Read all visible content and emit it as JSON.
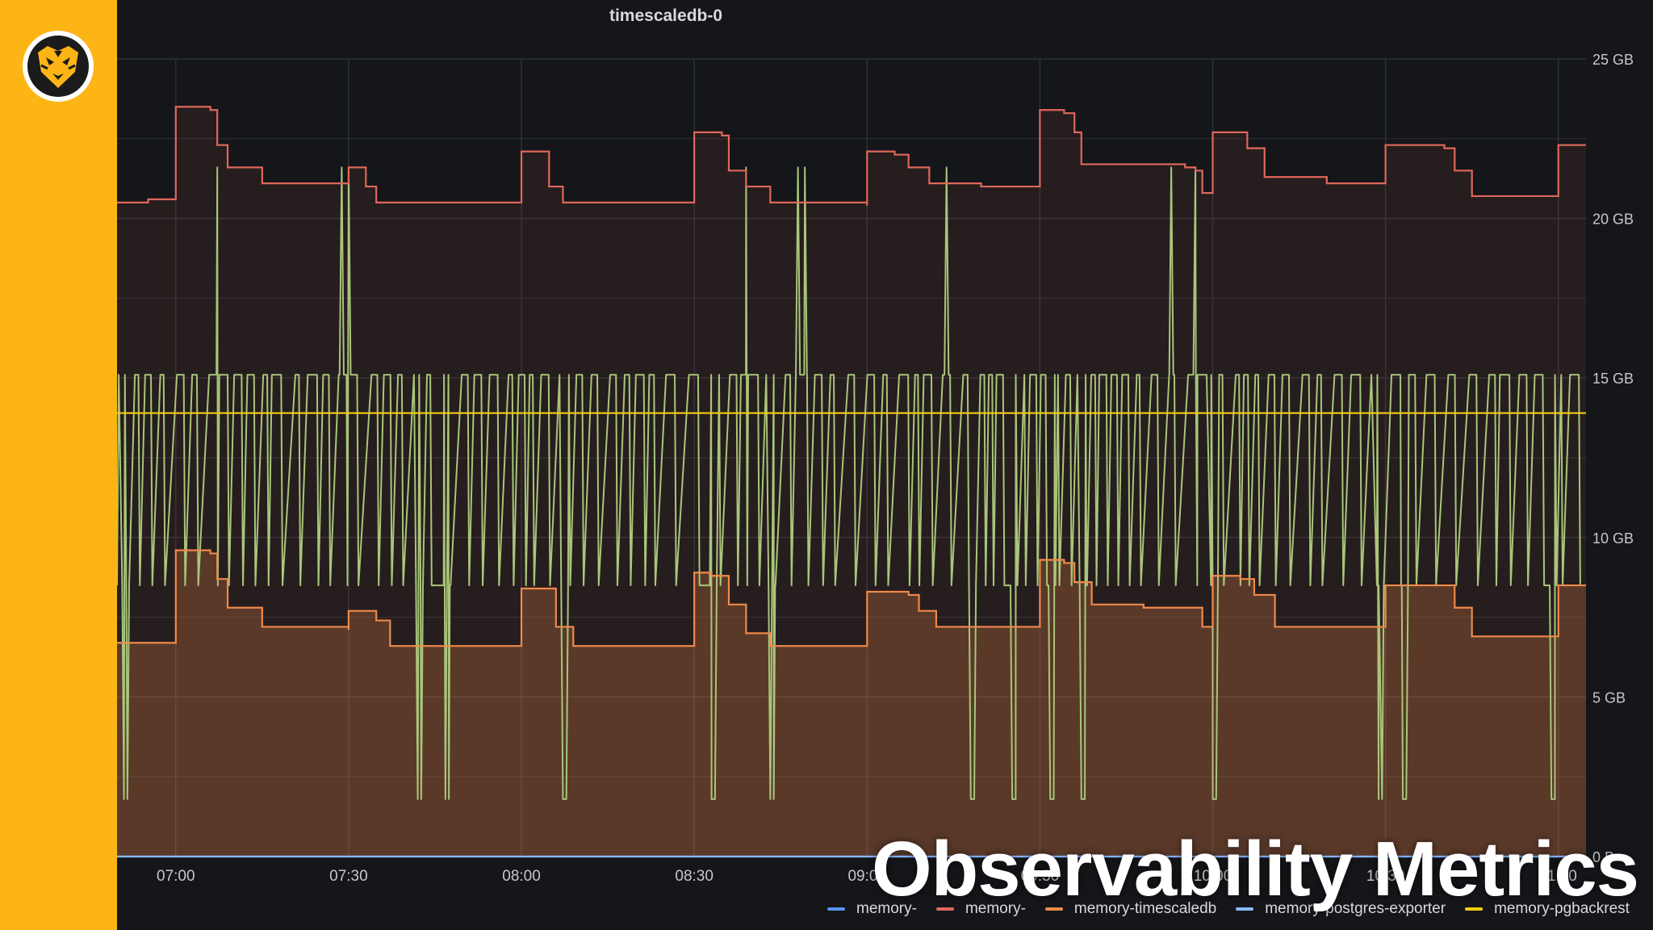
{
  "panel": {
    "title": "timescaledb-0"
  },
  "overlay": {
    "title": "Observability Metrics"
  },
  "logo": {
    "icon": "tiger-logo-icon"
  },
  "colors": {
    "sidebar": "#fdb515",
    "background": "#141619",
    "grid": "#2d3037",
    "axis_text": "#c7c8ca"
  },
  "chart_data": {
    "type": "area",
    "title": "timescaledb-0",
    "xlabel": "",
    "ylabel": "",
    "x_ticks": [
      "07:00",
      "07:30",
      "08:00",
      "08:30",
      "09:00",
      "09:30",
      "10:00",
      "10:30",
      "11:00"
    ],
    "y_ticks": [
      "25 GB",
      "20 GB",
      "15 GB",
      "10 GB",
      "5 GB",
      "0 B"
    ],
    "ylim_gb": [
      0,
      25
    ],
    "xlim_hours": [
      6.83,
      11.08
    ],
    "grid": true,
    "legend_position": "bottom-right",
    "series": [
      {
        "name": "memory-",
        "color": "#5794f2",
        "fill": false,
        "kind": "step",
        "points": [
          [
            6.83,
            0
          ],
          [
            11.08,
            0
          ]
        ]
      },
      {
        "name": "memory-",
        "color": "#e0675a",
        "fill": true,
        "kind": "step",
        "points": [
          [
            6.83,
            20.5
          ],
          [
            6.92,
            20.6
          ],
          [
            7.0,
            23.5
          ],
          [
            7.1,
            23.4
          ],
          [
            7.12,
            22.3
          ],
          [
            7.15,
            21.6
          ],
          [
            7.25,
            21.1
          ],
          [
            7.5,
            21.1
          ],
          [
            7.5,
            21.6
          ],
          [
            7.55,
            21.0
          ],
          [
            7.58,
            20.5
          ],
          [
            7.83,
            20.5
          ],
          [
            8.0,
            20.5
          ],
          [
            8.0,
            22.1
          ],
          [
            8.05,
            22.1
          ],
          [
            8.08,
            21.0
          ],
          [
            8.12,
            20.5
          ],
          [
            8.5,
            20.5
          ],
          [
            8.5,
            22.7
          ],
          [
            8.58,
            22.6
          ],
          [
            8.6,
            21.5
          ],
          [
            8.65,
            21.0
          ],
          [
            8.72,
            20.5
          ],
          [
            8.83,
            20.5
          ],
          [
            9.0,
            20.4
          ],
          [
            9.0,
            22.1
          ],
          [
            9.08,
            22.0
          ],
          [
            9.12,
            21.6
          ],
          [
            9.18,
            21.1
          ],
          [
            9.33,
            21.0
          ],
          [
            9.5,
            21.0
          ],
          [
            9.5,
            23.4
          ],
          [
            9.57,
            23.3
          ],
          [
            9.6,
            22.7
          ],
          [
            9.62,
            21.7
          ],
          [
            9.75,
            21.7
          ],
          [
            9.92,
            21.6
          ],
          [
            9.95,
            21.5
          ],
          [
            9.97,
            20.8
          ],
          [
            10.0,
            21.0
          ],
          [
            10.0,
            22.7
          ],
          [
            10.07,
            22.7
          ],
          [
            10.1,
            22.2
          ],
          [
            10.15,
            21.3
          ],
          [
            10.33,
            21.1
          ],
          [
            10.5,
            21.1
          ],
          [
            10.5,
            22.3
          ],
          [
            10.67,
            22.2
          ],
          [
            10.7,
            21.5
          ],
          [
            10.75,
            20.7
          ],
          [
            10.92,
            20.7
          ],
          [
            11.0,
            20.7
          ],
          [
            11.0,
            22.3
          ],
          [
            11.08,
            22.3
          ]
        ]
      },
      {
        "name": "memory-timescaledb",
        "color": "#ef8a4a",
        "fill": true,
        "kind": "step",
        "points": [
          [
            6.83,
            6.7
          ],
          [
            6.92,
            6.7
          ],
          [
            7.0,
            9.6
          ],
          [
            7.1,
            9.5
          ],
          [
            7.12,
            8.7
          ],
          [
            7.15,
            7.8
          ],
          [
            7.25,
            7.2
          ],
          [
            7.5,
            7.1
          ],
          [
            7.5,
            7.7
          ],
          [
            7.58,
            7.4
          ],
          [
            7.62,
            6.6
          ],
          [
            7.83,
            6.6
          ],
          [
            8.0,
            6.6
          ],
          [
            8.0,
            8.4
          ],
          [
            8.05,
            8.4
          ],
          [
            8.1,
            7.2
          ],
          [
            8.15,
            6.6
          ],
          [
            8.5,
            6.6
          ],
          [
            8.5,
            8.9
          ],
          [
            8.55,
            8.8
          ],
          [
            8.6,
            7.9
          ],
          [
            8.65,
            7.0
          ],
          [
            8.72,
            6.6
          ],
          [
            8.83,
            6.6
          ],
          [
            9.0,
            6.6
          ],
          [
            9.0,
            8.3
          ],
          [
            9.12,
            8.2
          ],
          [
            9.15,
            7.7
          ],
          [
            9.2,
            7.2
          ],
          [
            9.33,
            7.2
          ],
          [
            9.5,
            7.2
          ],
          [
            9.5,
            9.3
          ],
          [
            9.57,
            9.2
          ],
          [
            9.6,
            8.6
          ],
          [
            9.65,
            7.9
          ],
          [
            9.8,
            7.8
          ],
          [
            9.95,
            7.8
          ],
          [
            9.97,
            7.2
          ],
          [
            10.0,
            7.2
          ],
          [
            10.0,
            8.8
          ],
          [
            10.08,
            8.7
          ],
          [
            10.12,
            8.2
          ],
          [
            10.18,
            7.2
          ],
          [
            10.33,
            7.2
          ],
          [
            10.5,
            7.2
          ],
          [
            10.5,
            8.5
          ],
          [
            10.67,
            8.5
          ],
          [
            10.7,
            7.8
          ],
          [
            10.75,
            6.9
          ],
          [
            10.92,
            6.9
          ],
          [
            11.0,
            6.9
          ],
          [
            11.0,
            8.5
          ],
          [
            11.08,
            8.5
          ]
        ]
      },
      {
        "name": "memory-postgres-exporter",
        "color": "#8ab8ff",
        "fill": false,
        "kind": "step",
        "points": [
          [
            6.83,
            0
          ],
          [
            11.08,
            0
          ]
        ]
      },
      {
        "name": "memory-pgbackrest",
        "color": "#f2cc0c",
        "fill": false,
        "kind": "step",
        "points": [
          [
            6.83,
            13.9
          ],
          [
            11.08,
            13.9
          ]
        ]
      },
      {
        "name": "",
        "color": "#a9c57a",
        "fill": false,
        "kind": "oscillating",
        "levels_gb": [
          1.8,
          8.5,
          15.1,
          21.6
        ],
        "low_dips": [
          6.85,
          7.7,
          7.78,
          8.12,
          8.55,
          8.72,
          9.3,
          9.42,
          9.53,
          9.62,
          10.0,
          10.48,
          10.55,
          10.98
        ],
        "high_spikes": [
          7.12,
          7.48,
          7.5,
          8.65,
          8.8,
          8.82,
          9.23,
          9.88,
          9.95
        ]
      }
    ]
  }
}
